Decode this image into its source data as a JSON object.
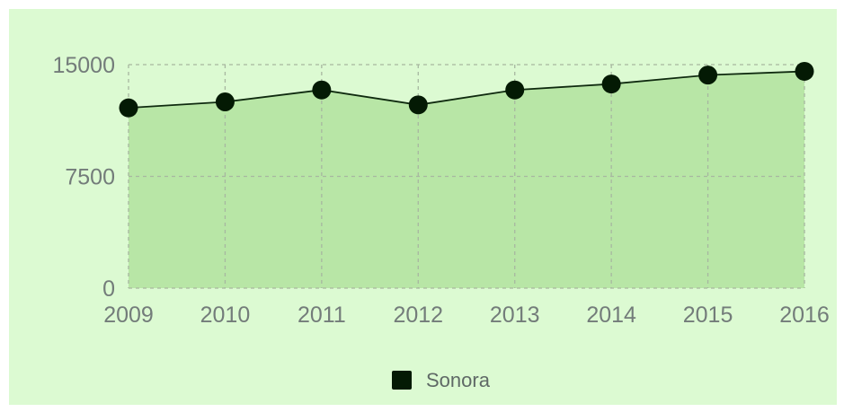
{
  "chart_data": {
    "type": "area",
    "title": "",
    "xlabel": "",
    "ylabel": "",
    "categories": [
      "2009",
      "2010",
      "2011",
      "2012",
      "2013",
      "2014",
      "2015",
      "2016"
    ],
    "series": [
      {
        "name": "Sonora",
        "values": [
          12100,
          12500,
          13300,
          12300,
          13300,
          13700,
          14300,
          14550
        ]
      }
    ],
    "ylim": [
      0,
      15000
    ],
    "yticks": [
      0,
      7500,
      15000
    ],
    "ytick_labels": [
      "0",
      "7500",
      "15000"
    ],
    "grid": true,
    "legend": "bottom-center"
  },
  "colors": {
    "panel_background": "#dcfad2",
    "area_fill": "#b8e6a6",
    "line": "#0f2a0f",
    "marker": "#041a04",
    "grid": "#a7b7a0",
    "legend_swatch": "#041a04"
  }
}
